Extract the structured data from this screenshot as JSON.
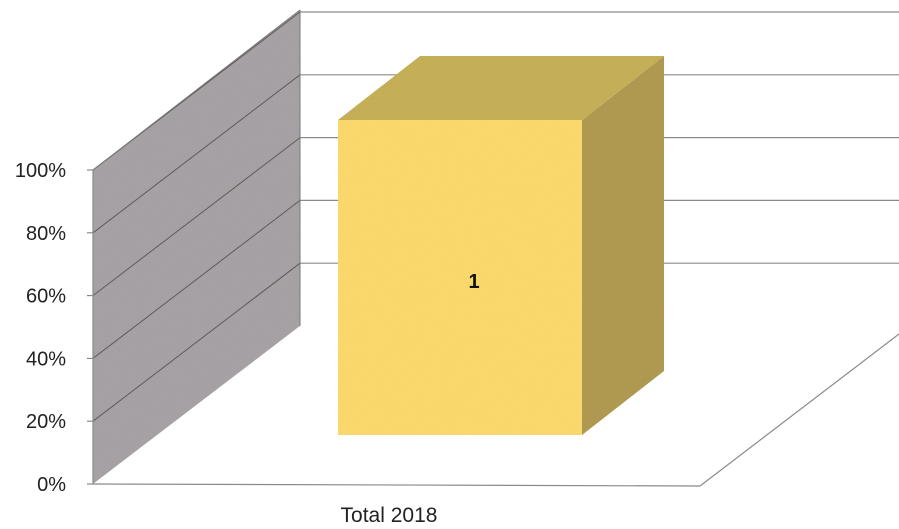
{
  "chart_data": {
    "type": "bar",
    "categories": [
      "Total 2018"
    ],
    "series": [
      {
        "values": [
          1
        ]
      }
    ],
    "data_labels": [
      "1"
    ],
    "ylim": [
      0,
      1
    ],
    "yticks": [
      "0%",
      "20%",
      "40%",
      "60%",
      "80%",
      "100%"
    ],
    "grid": true,
    "legend": "none",
    "style": "3d-column",
    "colors": {
      "bar_front": "#fedc6e",
      "bar_top": "#c8b25a",
      "bar_side": "#b29c52",
      "side_wall": "#a9a4a7",
      "back_wall": "#ffffff",
      "grid": "#8a8a8a"
    }
  }
}
